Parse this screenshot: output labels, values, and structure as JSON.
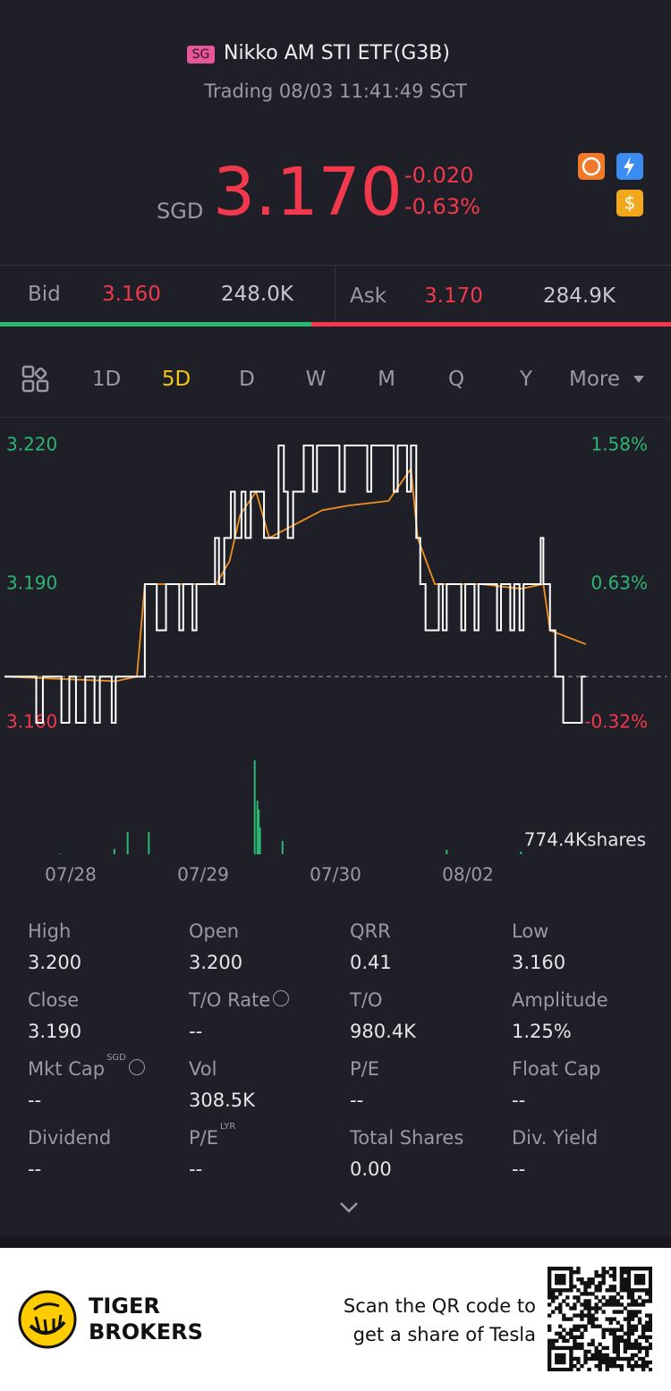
{
  "header": {
    "badge": "SG",
    "title": "Nikko AM STI ETF(G3B)",
    "status": "Trading 08/03 11:41:49 SGT"
  },
  "quote": {
    "currency": "SGD",
    "price": "3.170",
    "change": "-0.020",
    "change_pct": "-0.63%"
  },
  "orderbook": {
    "bid_label": "Bid",
    "bid": "3.160",
    "bid_size": "248.0K",
    "ask_label": "Ask",
    "ask": "3.170",
    "ask_size": "284.9K"
  },
  "tabs": {
    "items": [
      "1D",
      "5D",
      "D",
      "W",
      "M",
      "Q",
      "Y",
      "More"
    ],
    "active": 1
  },
  "chart": {
    "ylim": [
      3.16,
      3.22
    ],
    "yticks": [
      {
        "value": 3.16,
        "label": "3.160"
      },
      {
        "value": 3.19,
        "label": "3.190"
      },
      {
        "value": 3.22,
        "label": "3.220"
      }
    ],
    "y2lim": [
      -0.32,
      1.58
    ],
    "y2ticks": [
      {
        "value": -0.32,
        "label": "-0.32%"
      },
      {
        "value": 0.63,
        "label": "0.63%"
      },
      {
        "value": 1.58,
        "label": "1.58%"
      }
    ],
    "baseline": 3.17,
    "xlim": [
      0,
      5
    ],
    "xticks": [
      {
        "value": 0.5,
        "label": "07/28"
      },
      {
        "value": 1.5,
        "label": "07/29"
      },
      {
        "value": 2.5,
        "label": "07/30"
      },
      {
        "value": 3.5,
        "label": "08/02"
      }
    ],
    "price": {
      "color": "#ffffff",
      "x": [
        0,
        0.24,
        0.29,
        0.43,
        0.49,
        0.54,
        0.61,
        0.68,
        0.72,
        0.81,
        0.84,
        1.06,
        1.15,
        1.22,
        1.32,
        1.35,
        1.42,
        1.45,
        1.59,
        1.62,
        1.66,
        1.71,
        1.74,
        1.79,
        1.82,
        1.86,
        1.96,
        2.07,
        2.11,
        2.14,
        2.18,
        2.26,
        2.33,
        2.36,
        2.53,
        2.57,
        2.74,
        2.77,
        2.94,
        2.97,
        3.04,
        3.07,
        3.11,
        3.14,
        3.18,
        3.28,
        3.31,
        3.34,
        3.45,
        3.48,
        3.55,
        3.58,
        3.72,
        3.75,
        3.82,
        3.85,
        3.89,
        3.92,
        4.05,
        4.07,
        4.12,
        4.16,
        4.22,
        4.36,
        4.39
      ],
      "values": [
        3.17,
        3.16,
        3.17,
        3.16,
        3.17,
        3.16,
        3.17,
        3.16,
        3.17,
        3.16,
        3.17,
        3.19,
        3.18,
        3.19,
        3.18,
        3.19,
        3.18,
        3.19,
        3.2,
        3.19,
        3.2,
        3.21,
        3.2,
        3.21,
        3.2,
        3.21,
        3.2,
        3.22,
        3.21,
        3.2,
        3.21,
        3.22,
        3.21,
        3.22,
        3.21,
        3.22,
        3.21,
        3.22,
        3.21,
        3.22,
        3.21,
        3.22,
        3.2,
        3.19,
        3.18,
        3.19,
        3.18,
        3.19,
        3.18,
        3.19,
        3.18,
        3.19,
        3.18,
        3.19,
        3.18,
        3.19,
        3.18,
        3.19,
        3.2,
        3.19,
        3.18,
        3.17,
        3.16,
        3.17,
        3.17
      ]
    },
    "average": {
      "color": "#f0901e",
      "x": [
        0,
        0.84,
        1.0,
        1.06,
        1.6,
        1.7,
        1.78,
        1.9,
        2.0,
        2.2,
        2.4,
        2.6,
        2.9,
        3.07,
        3.12,
        3.25,
        3.6,
        3.9,
        4.07,
        4.12,
        4.3,
        4.39
      ],
      "values": [
        3.17,
        3.169,
        3.17,
        3.19,
        3.19,
        3.195,
        3.205,
        3.21,
        3.2,
        3.203,
        3.206,
        3.207,
        3.208,
        3.215,
        3.2,
        3.19,
        3.19,
        3.189,
        3.19,
        3.18,
        3.178,
        3.177
      ]
    },
    "volume": {
      "color": "#2bb673",
      "label": "774.4Kshares",
      "max": 774.4,
      "x": [
        0.42,
        0.83,
        0.93,
        1.09,
        1.89,
        1.91,
        1.92,
        1.93,
        2.1,
        3.34,
        3.9
      ],
      "values": [
        5,
        44,
        184,
        184,
        774.4,
        442,
        369,
        221,
        110,
        37,
        22
      ]
    }
  },
  "stats": [
    {
      "label": "High",
      "value": "3.200"
    },
    {
      "label": "Open",
      "value": "3.200"
    },
    {
      "label": "QRR",
      "value": "0.41"
    },
    {
      "label": "Low",
      "value": "3.160"
    },
    {
      "label": "Close",
      "value": "3.190"
    },
    {
      "label": "T/O Rate",
      "value": "--"
    },
    {
      "label": "T/O",
      "value": "980.4K"
    },
    {
      "label": "Amplitude",
      "value": "1.25%"
    },
    {
      "label": "Mkt Cap",
      "sup": "SGD",
      "value": "--"
    },
    {
      "label": "Vol",
      "value": "308.5K"
    },
    {
      "label": "P/E",
      "value": "--"
    },
    {
      "label": "Float Cap",
      "value": "--"
    },
    {
      "label": "Dividend",
      "value": "--"
    },
    {
      "label": "P/E",
      "sup": "LYR",
      "value": "--"
    },
    {
      "label": "Total Shares",
      "value": "0.00"
    },
    {
      "label": "Div. Yield",
      "value": "--"
    }
  ],
  "footer": {
    "brand_line1": "TIGER",
    "brand_line2": "BROKERS",
    "promo_line1": "Scan the QR code to",
    "promo_line2": "get a share of Tesla"
  }
}
